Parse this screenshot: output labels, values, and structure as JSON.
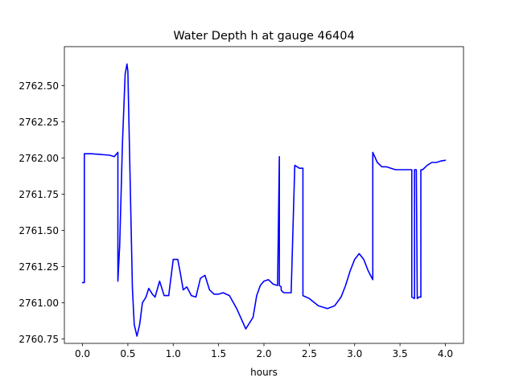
{
  "chart_data": {
    "type": "line",
    "title": "Water Depth h at gauge 46404",
    "xlabel": "hours",
    "ylabel": "",
    "xlim": [
      -0.2,
      4.2
    ],
    "ylim": [
      2760.72,
      2762.77
    ],
    "xticks": [
      0.0,
      0.5,
      1.0,
      1.5,
      2.0,
      2.5,
      3.0,
      3.5,
      4.0
    ],
    "xtick_labels": [
      "0.0",
      "0.5",
      "1.0",
      "1.5",
      "2.0",
      "2.5",
      "3.0",
      "3.5",
      "4.0"
    ],
    "yticks": [
      2760.75,
      2761.0,
      2761.25,
      2761.5,
      2761.75,
      2762.0,
      2762.25,
      2762.5
    ],
    "ytick_labels": [
      "2760.75",
      "2761.00",
      "2761.25",
      "2761.50",
      "2761.75",
      "2762.00",
      "2762.25",
      "2762.50"
    ],
    "grid": false,
    "series": [
      {
        "color": "#0000ff",
        "x": [
          0.0,
          0.02,
          0.02,
          0.1,
          0.2,
          0.3,
          0.35,
          0.39,
          0.39,
          0.41,
          0.44,
          0.47,
          0.49,
          0.5,
          0.52,
          0.55,
          0.57,
          0.6,
          0.63,
          0.66,
          0.7,
          0.73,
          0.77,
          0.8,
          0.85,
          0.9,
          0.95,
          1.0,
          1.05,
          1.08,
          1.11,
          1.15,
          1.2,
          1.25,
          1.3,
          1.35,
          1.4,
          1.45,
          1.5,
          1.55,
          1.62,
          1.7,
          1.8,
          1.88,
          1.92,
          1.96,
          2.0,
          2.05,
          2.1,
          2.15,
          2.17,
          2.17,
          2.19,
          2.19,
          2.2,
          2.22,
          2.3,
          2.34,
          2.34,
          2.39,
          2.43,
          2.43,
          2.5,
          2.6,
          2.7,
          2.78,
          2.85,
          2.9,
          2.95,
          3.0,
          3.05,
          3.1,
          3.15,
          3.2,
          3.2,
          3.25,
          3.3,
          3.35,
          3.4,
          3.45,
          3.5,
          3.6,
          3.63,
          3.63,
          3.66,
          3.66,
          3.68,
          3.69,
          3.69,
          3.71,
          3.73,
          3.73,
          3.75,
          3.8,
          3.85,
          3.9,
          3.95,
          4.0
        ],
        "y": [
          2761.14,
          2761.14,
          2762.03,
          2762.03,
          2762.025,
          2762.02,
          2762.01,
          2762.04,
          2761.15,
          2761.4,
          2762.1,
          2762.58,
          2762.65,
          2762.6,
          2762.0,
          2761.1,
          2760.85,
          2760.77,
          2760.85,
          2761.0,
          2761.04,
          2761.1,
          2761.06,
          2761.04,
          2761.15,
          2761.05,
          2761.05,
          2761.3,
          2761.3,
          2761.2,
          2761.09,
          2761.11,
          2761.05,
          2761.04,
          2761.17,
          2761.19,
          2761.09,
          2761.06,
          2761.06,
          2761.07,
          2761.05,
          2760.96,
          2760.82,
          2760.9,
          2761.05,
          2761.12,
          2761.15,
          2761.16,
          2761.13,
          2761.12,
          2762.01,
          2761.12,
          2761.11,
          2761.09,
          2761.08,
          2761.07,
          2761.07,
          2761.95,
          2761.95,
          2761.93,
          2761.93,
          2761.05,
          2761.03,
          2760.98,
          2760.96,
          2760.98,
          2761.04,
          2761.12,
          2761.22,
          2761.3,
          2761.34,
          2761.3,
          2761.22,
          2761.16,
          2762.04,
          2761.97,
          2761.94,
          2761.94,
          2761.93,
          2761.92,
          2761.92,
          2761.92,
          2761.92,
          2761.04,
          2761.03,
          2761.92,
          2761.92,
          2761.04,
          2761.03,
          2761.04,
          2761.04,
          2761.92,
          2761.92,
          2761.95,
          2761.97,
          2761.97,
          2761.98,
          2761.985
        ]
      }
    ]
  }
}
